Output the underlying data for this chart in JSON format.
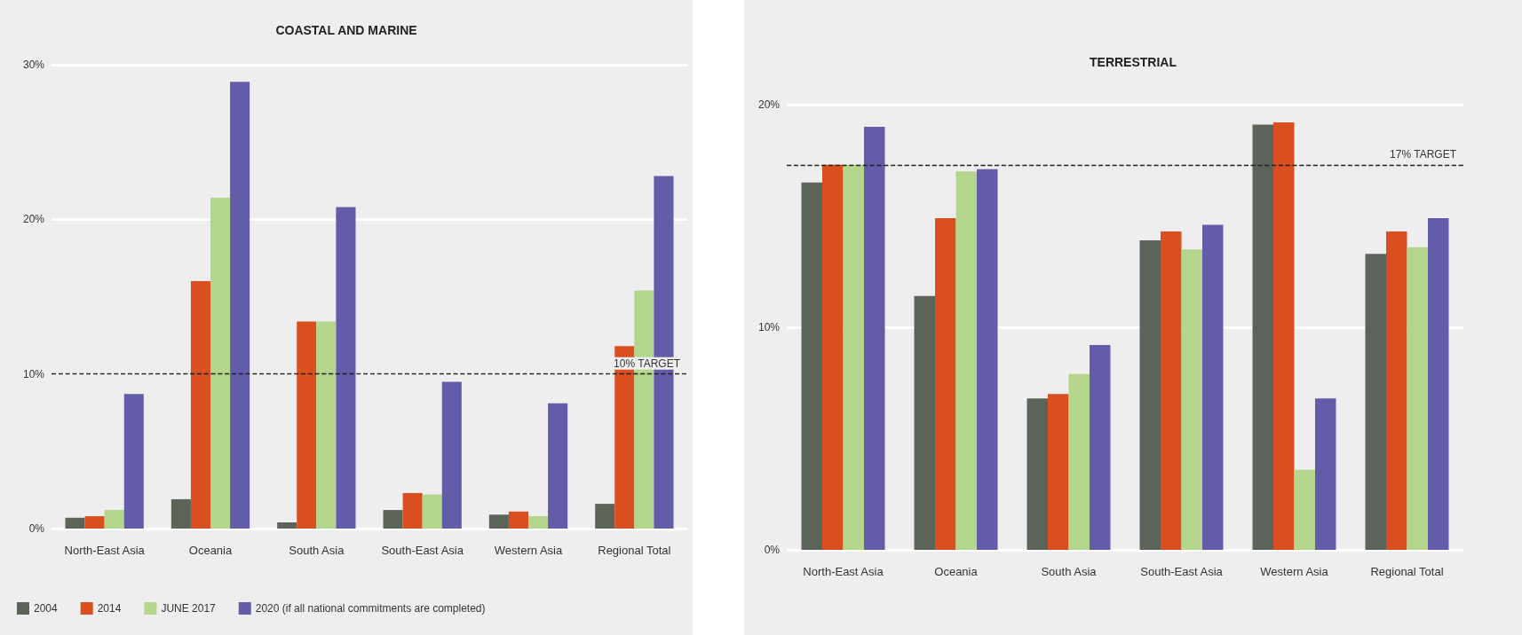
{
  "chart_data": [
    {
      "type": "bar",
      "title": "COASTAL AND MARINE",
      "categories": [
        "North-East Asia",
        "Oceania",
        "South Asia",
        "South-East Asia",
        "Western Asia",
        "Regional Total"
      ],
      "series": [
        {
          "name": "2004",
          "color": "#5c6459",
          "values": [
            0.7,
            1.9,
            0.4,
            1.2,
            0.9,
            1.6
          ]
        },
        {
          "name": "2014",
          "color": "#d94f1f",
          "values": [
            0.8,
            16.0,
            13.4,
            2.3,
            1.1,
            11.8
          ]
        },
        {
          "name": "JUNE 2017",
          "color": "#b3d68c",
          "values": [
            1.2,
            21.4,
            13.4,
            2.2,
            0.8,
            15.4
          ]
        },
        {
          "name": "2020 (if all national commitments are completed)",
          "color": "#625ca9",
          "values": [
            8.7,
            28.9,
            20.8,
            9.5,
            8.1,
            22.8
          ]
        }
      ],
      "ylim": [
        0,
        30
      ],
      "yticks": [
        {
          "value": 0,
          "label": "0%"
        },
        {
          "value": 10,
          "label": "10%"
        },
        {
          "value": 20,
          "label": "20%"
        },
        {
          "value": 30,
          "label": "30%"
        }
      ],
      "ref_lines": [
        {
          "axis": "y",
          "value": 10,
          "label": "10% TARGET",
          "line_style": "dashed",
          "color": "#222222"
        }
      ],
      "grid": "y",
      "legend": "bottom left"
    },
    {
      "type": "bar",
      "title": "TERRESTRIAL",
      "categories": [
        "North-East Asia",
        "Oceania",
        "South Asia",
        "South-East Asia",
        "Western Asia",
        "Regional Total"
      ],
      "series": [
        {
          "color": "#5c6459",
          "values": [
            16.5,
            11.4,
            6.8,
            13.9,
            19.1,
            13.3
          ]
        },
        {
          "color": "#d94f1f",
          "values": [
            17.3,
            14.9,
            7.0,
            14.3,
            19.2,
            14.3
          ]
        },
        {
          "color": "#b3d68c",
          "values": [
            17.3,
            17.0,
            7.9,
            13.5,
            3.6,
            13.6
          ]
        },
        {
          "color": "#625ca9",
          "values": [
            19.0,
            17.1,
            9.2,
            14.6,
            6.8,
            14.9
          ]
        }
      ],
      "ylim": [
        0,
        20
      ],
      "yticks": [
        {
          "value": 0,
          "label": "0%"
        },
        {
          "value": 10,
          "label": "10%"
        },
        {
          "value": 20,
          "label": "20%"
        }
      ],
      "ref_lines": [
        {
          "axis": "y",
          "value": 17.3,
          "label": "17% TARGET",
          "line_style": "dashed",
          "color": "#222222"
        }
      ],
      "grid": "y",
      "legend": false
    }
  ]
}
